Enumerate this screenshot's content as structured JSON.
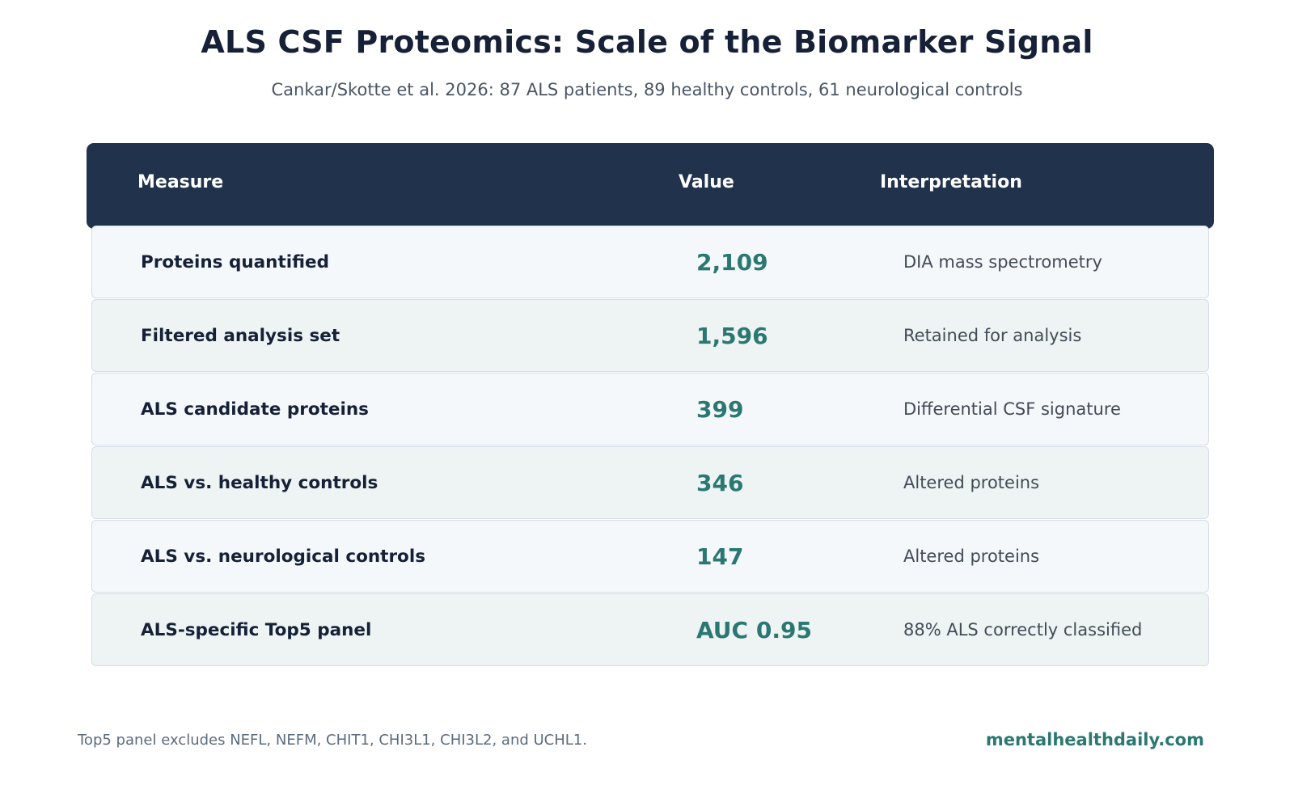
{
  "title": "ALS CSF Proteomics: Scale of the Biomarker Signal",
  "subtitle": "Cankar/Skotte et al. 2026: 87 ALS patients, 89 healthy controls, 61 neurological controls",
  "table": {
    "headers": {
      "measure": "Measure",
      "value": "Value",
      "interpretation": "Interpretation"
    },
    "rows": [
      {
        "measure": "Proteins quantified",
        "value": "2,109",
        "interpretation": "DIA mass spectrometry"
      },
      {
        "measure": "Filtered analysis set",
        "value": "1,596",
        "interpretation": "Retained for analysis"
      },
      {
        "measure": "ALS candidate proteins",
        "value": "399",
        "interpretation": "Differential CSF signature"
      },
      {
        "measure": "ALS vs. healthy controls",
        "value": "346",
        "interpretation": "Altered proteins"
      },
      {
        "measure": "ALS vs. neurological controls",
        "value": "147",
        "interpretation": "Altered proteins"
      },
      {
        "measure": "ALS-specific Top5 panel",
        "value": "AUC 0.95",
        "interpretation": "88% ALS correctly classified"
      }
    ]
  },
  "footnote": "Top5 panel excludes NEFL, NEFM, CHIT1, CHI3L1, CHI3L2, and UCHL1.",
  "source": "mentalhealthdaily.com",
  "colors": {
    "header_bg": "#21334c",
    "accent": "#2b7873",
    "title": "#162036"
  }
}
